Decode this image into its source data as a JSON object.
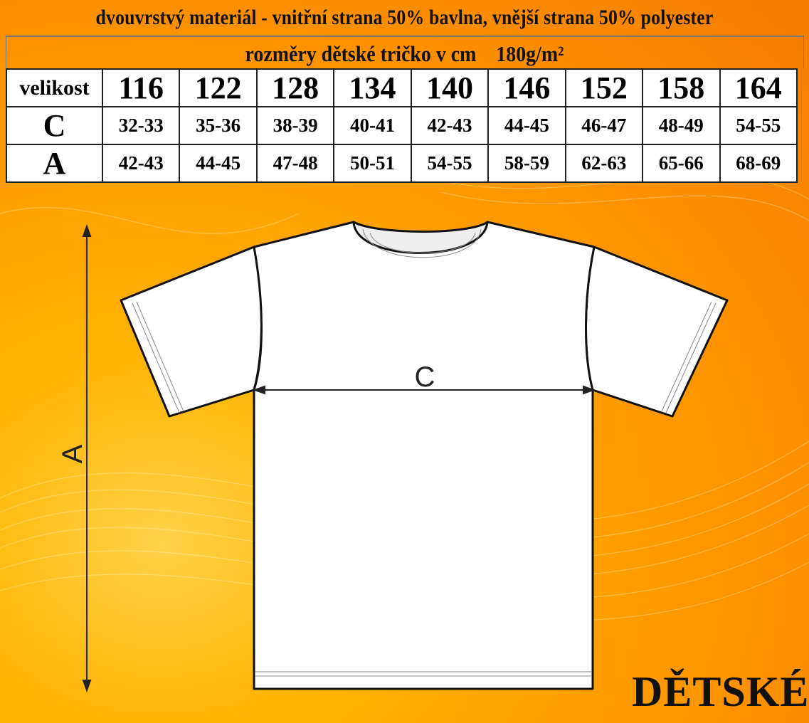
{
  "header": {
    "material": "dvouvrstvý materiál - vnitřní strana 50% bavlna, vnější strana 50% polyester",
    "subtitle": "rozměry dětské tričko v cm    180g/m²"
  },
  "size_table": {
    "header_label": "velikost",
    "sizes": [
      "116",
      "122",
      "128",
      "134",
      "140",
      "146",
      "152",
      "158",
      "164"
    ],
    "rows": [
      {
        "label": "C",
        "values": [
          "32-33",
          "35-36",
          "38-39",
          "40-41",
          "42-43",
          "44-45",
          "46-47",
          "48-49",
          "54-55"
        ]
      },
      {
        "label": "A",
        "values": [
          "42-43",
          "44-45",
          "47-48",
          "50-51",
          "54-55",
          "58-59",
          "62-63",
          "65-66",
          "68-69"
        ]
      }
    ]
  },
  "diagram": {
    "width_label": "C",
    "length_label": "A"
  },
  "footer": {
    "category": "DĚTSKÉ"
  },
  "colors": {
    "background": "#ff9a00",
    "table_bg": "#ffffff",
    "text": "#111111"
  }
}
